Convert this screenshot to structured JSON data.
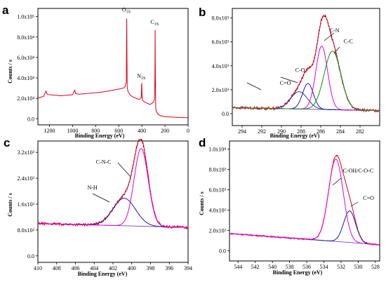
{
  "chart_data": [
    {
      "id": "a",
      "panel_label": "a",
      "type": "line",
      "xlabel": "Binding Energy (eV)",
      "ylabel": "Counts / s",
      "xlim": [
        1300,
        0
      ],
      "ylim": [
        -6000,
        108000
      ],
      "xticks": [
        1200,
        1000,
        800,
        600,
        400,
        200,
        0
      ],
      "xtick_labels": [
        "1200",
        "1000",
        "800",
        "600",
        "400",
        "200",
        "0"
      ],
      "yticks": [
        0,
        20000,
        40000,
        60000,
        80000,
        100000
      ],
      "ytick_labels": [
        "0.0",
        "2.0x10⁴",
        "4.0x10⁴",
        "6.0x10⁴",
        "8.0x10⁴",
        "1.0x10⁵"
      ],
      "series": [
        {
          "color": "#e0001a",
          "x": [
            1300,
            1250,
            1230,
            1220,
            1200,
            1150,
            1100,
            1050,
            1000,
            990,
            980,
            975,
            970,
            960,
            950,
            900,
            850,
            800,
            750,
            700,
            650,
            600,
            560,
            545,
            535,
            533,
            531,
            529,
            527,
            520,
            510,
            500,
            480,
            460,
            440,
            420,
            405,
            403,
            401,
            399,
            397,
            390,
            370,
            350,
            330,
            300,
            290,
            287,
            285,
            283,
            280,
            275,
            260,
            240,
            220,
            200,
            150,
            100,
            50,
            0
          ],
          "y": [
            20000,
            22000,
            27000,
            24000,
            23500,
            23000,
            22500,
            23000,
            23500,
            26000,
            28000,
            25000,
            24500,
            24500,
            24000,
            24500,
            25000,
            25500,
            26000,
            27000,
            28000,
            29000,
            30000,
            31500,
            36000,
            70000,
            98000,
            60000,
            31000,
            26500,
            25000,
            23000,
            21500,
            20500,
            19500,
            19000,
            21000,
            32000,
            35000,
            25000,
            19000,
            17500,
            16000,
            15000,
            14000,
            16000,
            20000,
            45000,
            87000,
            40000,
            10000,
            7000,
            4500,
            3000,
            2500,
            2000,
            1700,
            1400,
            1200,
            1000
          ]
        }
      ],
      "annotations": [
        {
          "text": "O",
          "sub": "1S",
          "x": 535,
          "y": 105000
        },
        {
          "text": "N",
          "sub": "1S",
          "x": 405,
          "y": 40000
        },
        {
          "text": "C",
          "sub": "1S",
          "x": 290,
          "y": 93000
        }
      ]
    },
    {
      "id": "b",
      "panel_label": "b",
      "type": "line",
      "xlabel": "Binding Energy (eV)",
      "ylabel": "",
      "xlim": [
        295,
        280
      ],
      "ylim": [
        -1000,
        8800
      ],
      "xticks": [
        294,
        292,
        290,
        288,
        286,
        284,
        282
      ],
      "xtick_labels": [
        "294",
        "292",
        "290",
        "288",
        "286",
        "284",
        "282"
      ],
      "yticks": [
        0,
        2000,
        4000,
        6000,
        8000
      ],
      "ytick_labels": [
        "0.0",
        "2.0x10³",
        "4.0x10³",
        "6.0x10³",
        "8.0x10³"
      ],
      "background": {
        "x": [
          295,
          280
        ],
        "y": [
          500,
          250
        ]
      },
      "series": [
        {
          "color": "#000000",
          "dashed": true,
          "peaks": [
            [
              288.2,
              1450,
              0.85
            ],
            [
              287.3,
              2150,
              0.55
            ],
            [
              285.9,
              5300,
              0.6
            ],
            [
              284.8,
              4900,
              0.85
            ]
          ]
        },
        {
          "color": "#e0001a",
          "peaks": [
            [
              288.2,
              1500,
              0.85
            ],
            [
              287.3,
              2100,
              0.55
            ],
            [
              285.9,
              5400,
              0.6
            ],
            [
              284.8,
              4800,
              0.85
            ]
          ],
          "noise": 0.04
        },
        {
          "color": "#1f3fb0",
          "peaks": [
            [
              288.2,
              1450,
              0.85
            ]
          ]
        },
        {
          "color": "#1a1aa0",
          "peaks": [
            [
              287.3,
              2150,
              0.55
            ]
          ]
        },
        {
          "color": "#e000e0",
          "peaks": [
            [
              285.9,
              5300,
              0.6
            ]
          ]
        },
        {
          "color": "#109010",
          "peaks": [
            [
              284.8,
              4900,
              0.85
            ]
          ]
        }
      ],
      "annotations": [
        {
          "text": "C=O",
          "x": 289.6,
          "y": 2400
        },
        {
          "text": "C-O",
          "x": 288.1,
          "y": 3500
        },
        {
          "text": "C-N",
          "x": 284.6,
          "y": 6800
        },
        {
          "text": "C-C",
          "x": 283.2,
          "y": 5900
        }
      ]
    },
    {
      "id": "c",
      "panel_label": "c",
      "type": "line",
      "xlabel": "Binding Energy (eV)",
      "ylabel": "Counts / s",
      "xlim": [
        410,
        394
      ],
      "ylim": [
        -200,
        3550
      ],
      "xticks": [
        410,
        408,
        406,
        404,
        402,
        400,
        398,
        396,
        394
      ],
      "xtick_labels": [
        "410",
        "408",
        "406",
        "404",
        "402",
        "400",
        "398",
        "396",
        "394"
      ],
      "yticks": [
        0,
        800,
        1600,
        2400,
        3200
      ],
      "ytick_labels": [
        "0.0",
        "8.0x10²",
        "1.6x10³",
        "2.4x10³",
        "3.2x10³"
      ],
      "background": {
        "x": [
          410,
          394
        ],
        "y": [
          1000,
          880
        ]
      },
      "series": [
        {
          "color": "#000000",
          "dashed": true,
          "peaks": [
            [
              400.8,
              850,
              1.2
            ],
            [
              399.0,
              2400,
              0.75
            ]
          ]
        },
        {
          "color": "#e0001a",
          "peaks": [
            [
              400.8,
              850,
              1.2
            ],
            [
              399.0,
              2420,
              0.75
            ]
          ],
          "noise": 0.035
        },
        {
          "color": "#1a1aa0",
          "peaks": [
            [
              400.8,
              850,
              1.2
            ]
          ]
        },
        {
          "color": "#e000e0",
          "peaks": [
            [
              399.0,
              2400,
              0.75
            ]
          ]
        }
      ],
      "annotations": [
        {
          "text": "C-N-C",
          "x": 403.0,
          "y": 2850
        },
        {
          "text": "N-H",
          "x": 404.2,
          "y": 2050
        }
      ]
    },
    {
      "id": "d",
      "panel_label": "d",
      "type": "line",
      "xlabel": "Binding Energy (eV)",
      "ylabel": "Counts / s",
      "xlim": [
        545,
        527.5
      ],
      "ylim": [
        -1000,
        10800
      ],
      "xticks": [
        544,
        542,
        540,
        538,
        536,
        534,
        532,
        530,
        528
      ],
      "xtick_labels": [
        "544",
        "542",
        "540",
        "538",
        "536",
        "534",
        "532",
        "530",
        "528"
      ],
      "yticks": [
        0,
        2000,
        4000,
        6000,
        8000,
        10000
      ],
      "ytick_labels": [
        "0.0",
        "2.0x10³",
        "4.0x10³",
        "6.0x10³",
        "8.0x10³",
        "1.0x10⁴"
      ],
      "background": {
        "x": [
          545,
          527.5
        ],
        "y": [
          1700,
          600
        ]
      },
      "series": [
        {
          "color": "#e0001a",
          "peaks": [
            [
              532.6,
              8200,
              0.85
            ],
            [
              531.0,
              3100,
              0.7
            ]
          ],
          "noise": 0.02
        },
        {
          "color": "#1a1aa0",
          "peaks": [
            [
              531.0,
              3100,
              0.7
            ]
          ]
        },
        {
          "color": "#e000e0",
          "peaks": [
            [
              532.6,
              8100,
              0.85
            ]
          ]
        }
      ],
      "annotations": [
        {
          "text": "C-OH/C-O-C",
          "x": 530.0,
          "y": 7700
        },
        {
          "text": "C=O",
          "x": 528.8,
          "y": 5000
        }
      ]
    }
  ]
}
